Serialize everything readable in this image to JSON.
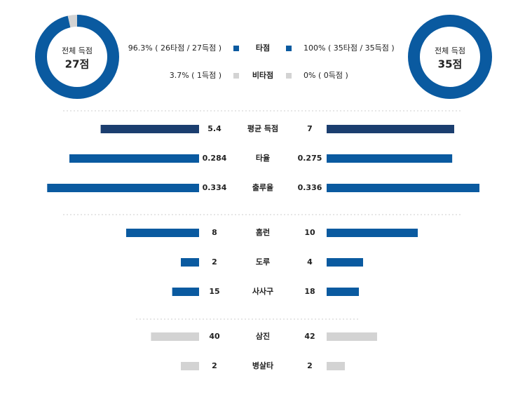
{
  "summary": {
    "left": {
      "caption": "전체 득점",
      "total": "27점",
      "values": [
        96.3,
        3.7
      ],
      "value_labels": [
        "96.3% ( 26타점 / 27득점 )",
        "3.7% ( 1득점 )"
      ]
    },
    "right": {
      "caption": "전체 득점",
      "total": "35점",
      "values": [
        100,
        0
      ],
      "value_labels": [
        "100% ( 35타점 / 35득점 )",
        "0% ( 0득점 )"
      ]
    },
    "legend": [
      "타점",
      "비타점"
    ],
    "colors": [
      "#0a5aa0",
      "#d3d3d3"
    ]
  },
  "rows": [
    {
      "label": "평균 득점",
      "left": 5.4,
      "right": 7,
      "color": "#1b3e6f"
    },
    {
      "label": "타율",
      "left": 0.284,
      "right": 0.275,
      "color": "#0a5aa0"
    },
    {
      "label": "출루율",
      "left": 0.334,
      "right": 0.336,
      "color": "#0a5aa0"
    },
    {
      "label": "홈런",
      "left": 8,
      "right": 10,
      "color": "#0a5aa0"
    },
    {
      "label": "도루",
      "left": 2,
      "right": 4,
      "color": "#0a5aa0"
    },
    {
      "label": "사사구",
      "left": 15,
      "right": 18,
      "color": "#0a5aa0"
    },
    {
      "label": "삼진",
      "left": 40,
      "right": 42,
      "color": "#d3d3d3"
    },
    {
      "label": "병살타",
      "left": 2,
      "right": 2,
      "color": "#d3d3d3"
    }
  ]
}
